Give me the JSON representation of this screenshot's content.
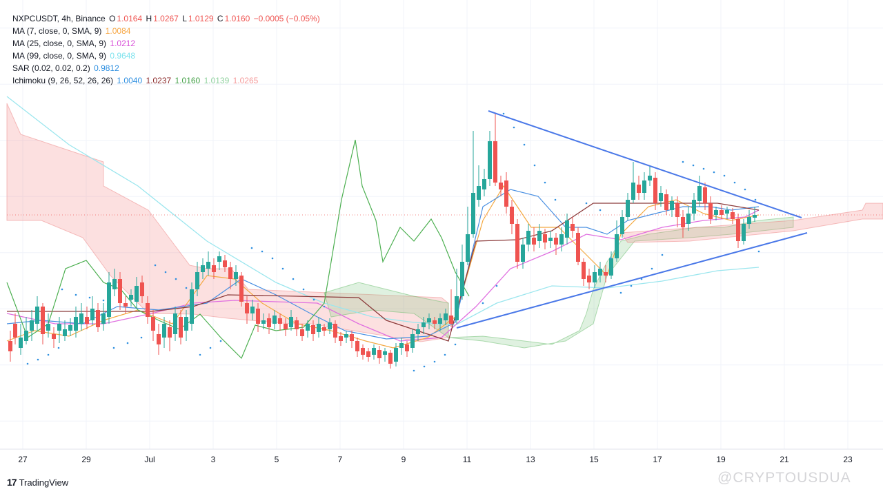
{
  "header": {
    "symbol_line": "NXPCUSDT, 4h, Binance",
    "o_label": "O",
    "o_value": "1.0164",
    "h_label": "H",
    "h_value": "1.0267",
    "l_label": "L",
    "l_value": "1.0129",
    "c_label": "C",
    "c_value": "1.0160",
    "change": "−0.0005 (−0.05%)"
  },
  "indicators": [
    {
      "label": "MA (7, close, 0, SMA, 9)",
      "values": [
        {
          "v": "1.0084",
          "color": "#f7a540"
        }
      ]
    },
    {
      "label": "MA (25, close, 0, SMA, 9)",
      "values": [
        {
          "v": "1.0212",
          "color": "#d84fd8"
        }
      ]
    },
    {
      "label": "MA (99, close, 0, SMA, 9)",
      "values": [
        {
          "v": "0.9648",
          "color": "#7ee3ee"
        }
      ]
    },
    {
      "label": "SAR (0.02, 0.02, 0.2)",
      "values": [
        {
          "v": "0.9812",
          "color": "#2e8fe0"
        }
      ]
    },
    {
      "label": "Ichimoku (9, 26, 52, 26, 26)",
      "values": [
        {
          "v": "1.0040",
          "color": "#2e8fe0"
        },
        {
          "v": "1.0237",
          "color": "#8b2a2a"
        },
        {
          "v": "1.0160",
          "color": "#43a047"
        },
        {
          "v": "1.0139",
          "color": "#8fd19e"
        },
        {
          "v": "1.0265",
          "color": "#f59a9a"
        }
      ]
    }
  ],
  "colors": {
    "up": "#26a69a",
    "down": "#ef5350",
    "trendline": "#4a78e8",
    "grid": "#f0f3fa"
  },
  "footer": {
    "brand": "TradingView",
    "watermark": "@CRYPTOUSDUA"
  },
  "chart_data": {
    "type": "candlestick",
    "interval": "4h",
    "x_tick_labels": [
      "27",
      "29",
      "Jul",
      "3",
      "5",
      "7",
      "9",
      "11",
      "13",
      "15",
      "17",
      "19",
      "21",
      "23"
    ],
    "y_range": [
      0.75,
      1.15
    ],
    "grid": true,
    "last_close": 1.016,
    "candle_span": [
      "Jun 26",
      "Jul 20"
    ],
    "trendlines": [
      {
        "name": "upper",
        "from": [
          "Jul 11",
          1.097
        ],
        "to": [
          "Jul 21",
          1.012
        ]
      },
      {
        "name": "lower",
        "from": [
          "Jul 10",
          0.925
        ],
        "to": [
          "Jul 21",
          1.0
        ]
      }
    ]
  }
}
